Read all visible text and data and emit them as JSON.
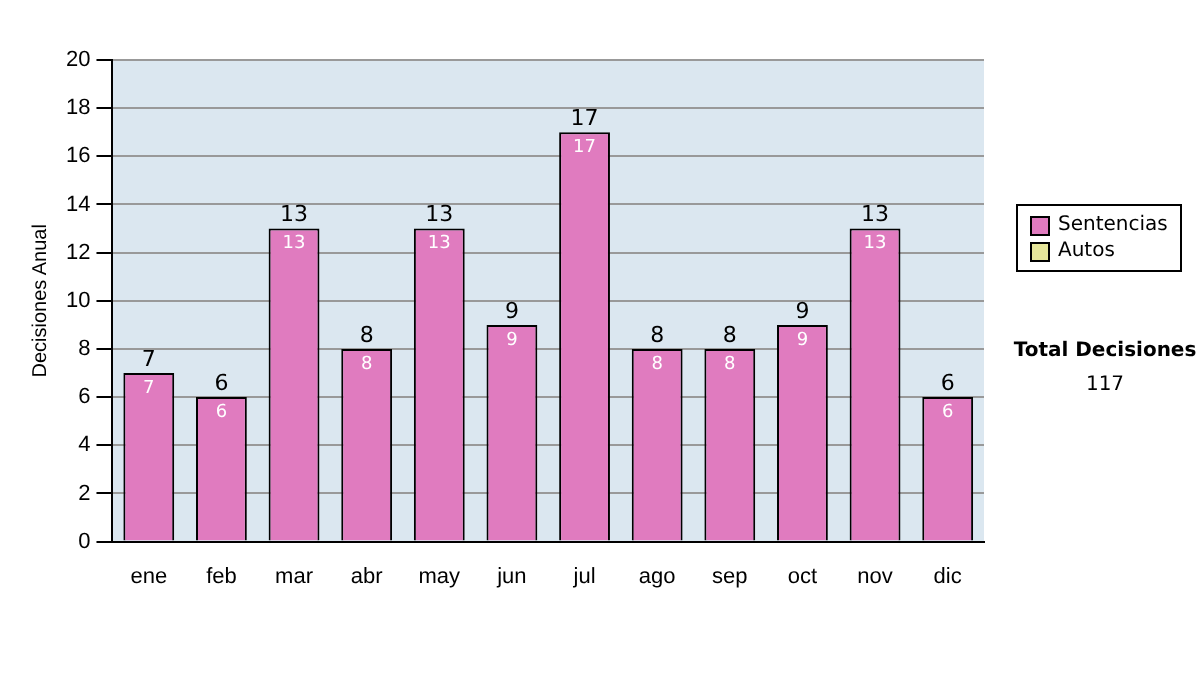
{
  "chart_data": {
    "type": "bar",
    "ylabel": "Decisiones Anual",
    "categories": [
      "ene",
      "feb",
      "mar",
      "abr",
      "may",
      "jun",
      "jul",
      "ago",
      "sep",
      "oct",
      "nov",
      "dic"
    ],
    "series": [
      {
        "name": "Sentencias",
        "color": "#e07bbf",
        "values": [
          7,
          6,
          13,
          8,
          13,
          9,
          17,
          8,
          8,
          9,
          13,
          6
        ],
        "value_labels": [
          "7",
          "6",
          "13",
          "8",
          "13",
          "9",
          "17",
          "8",
          "8",
          "9",
          "13",
          "6"
        ]
      },
      {
        "name": "Autos",
        "color": "#e6e69a",
        "values": [
          0,
          0,
          0,
          0,
          0,
          0,
          0,
          0,
          0,
          0,
          0,
          0
        ],
        "value_labels": [
          null,
          null,
          null,
          null,
          null,
          null,
          null,
          null,
          null,
          null,
          null,
          null
        ]
      }
    ],
    "stacked": true,
    "totals": [
      "7",
      "6",
      "13",
      "8",
      "13",
      "9",
      "17",
      "8",
      "8",
      "9",
      "13",
      "6"
    ],
    "ylim": [
      0,
      20
    ],
    "yticks": [
      0,
      2,
      4,
      6,
      8,
      10,
      12,
      14,
      16,
      18,
      20
    ],
    "grid": "y",
    "legend": "right",
    "annotations": [
      "Total Decisiones",
      "117"
    ]
  }
}
